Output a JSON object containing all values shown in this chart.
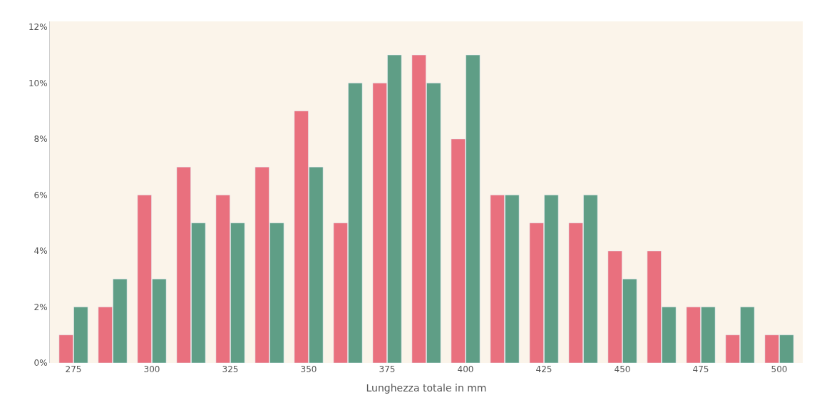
{
  "chart_data": {
    "type": "bar",
    "xlabel": "Lunghezza totale in mm",
    "categories": [
      "275",
      null,
      "300",
      null,
      "325",
      null,
      "350",
      null,
      "375",
      null,
      "400",
      null,
      "425",
      null,
      "450",
      null,
      "475",
      null,
      "500"
    ],
    "series": [
      {
        "color": "#e9707e",
        "values": [
          1,
          2,
          6,
          7,
          6,
          7,
          9,
          5,
          10,
          11,
          8,
          6,
          5,
          5,
          4,
          4,
          2,
          1,
          1
        ]
      },
      {
        "color": "#5f9e86",
        "values": [
          2,
          3,
          3,
          5,
          5,
          5,
          7,
          10,
          11,
          10,
          11,
          6,
          6,
          6,
          3,
          2,
          2,
          2,
          1
        ]
      }
    ],
    "ylim": [
      0,
      12.2
    ],
    "yticks": [
      {
        "value": 0,
        "label": "0%"
      },
      {
        "value": 2,
        "label": "2%"
      },
      {
        "value": 4,
        "label": "4%"
      },
      {
        "value": 6,
        "label": "6%"
      },
      {
        "value": 8,
        "label": "8%"
      },
      {
        "value": 10,
        "label": "10%"
      },
      {
        "value": 12,
        "label": "12%"
      }
    ],
    "grid": false
  }
}
